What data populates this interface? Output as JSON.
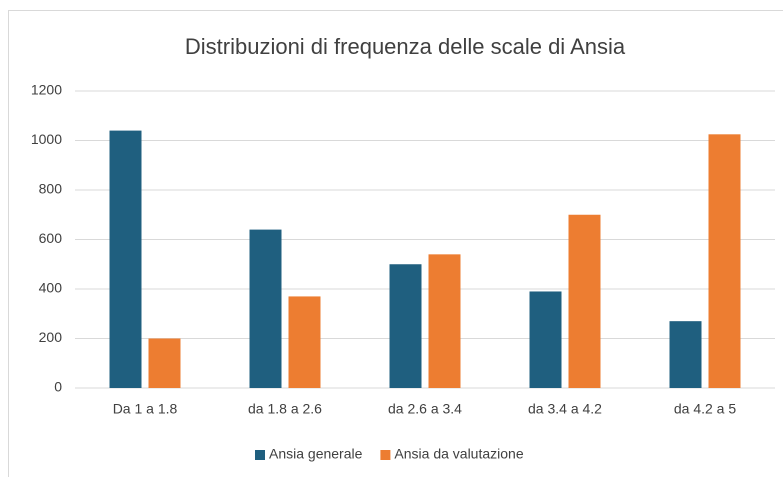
{
  "chart_data": {
    "type": "bar",
    "title": "Distribuzioni di frequenza delle scale di Ansia",
    "categories": [
      "Da 1 a 1.8",
      "da 1.8 a 2.6",
      "da 2.6 a 3.4",
      "da 3.4 a 4.2",
      "da 4.2 a 5"
    ],
    "series": [
      {
        "name": "Ansia generale",
        "color": "#1f5f7f",
        "values": [
          1040,
          640,
          500,
          390,
          270
        ]
      },
      {
        "name": "Ansia da valutazione",
        "color": "#ed7d31",
        "values": [
          200,
          370,
          540,
          700,
          1025
        ]
      }
    ],
    "ylim": [
      0,
      1200
    ],
    "yticks": [
      0,
      200,
      400,
      600,
      800,
      1000,
      1200
    ],
    "grid": true,
    "legend": "bottom"
  }
}
